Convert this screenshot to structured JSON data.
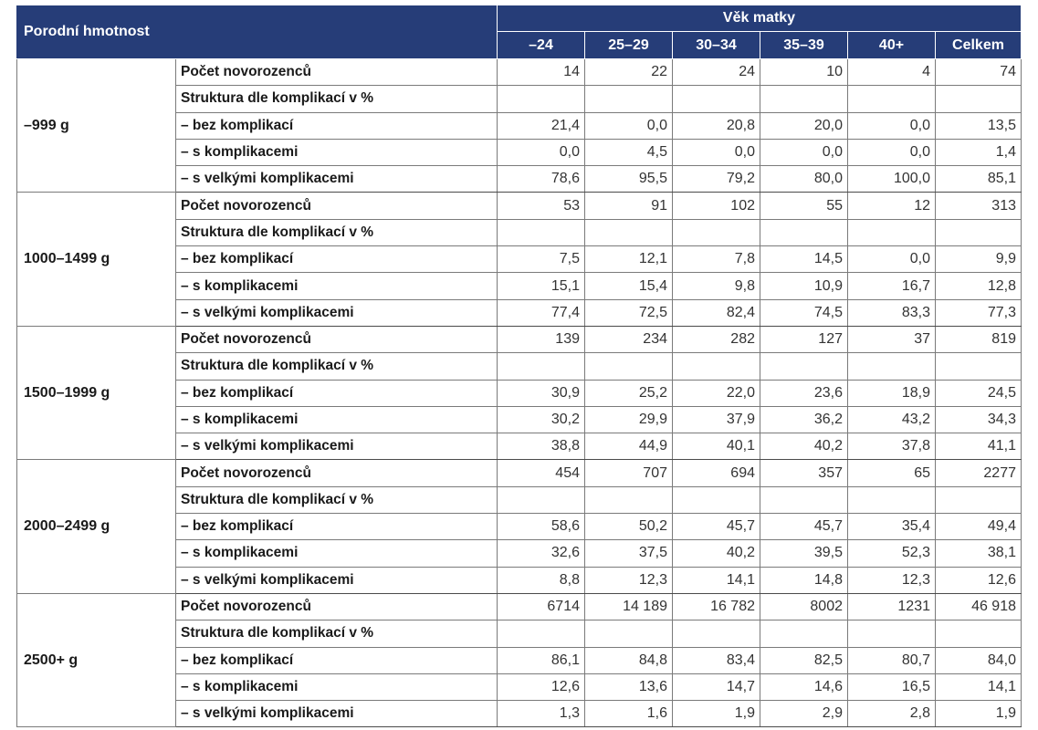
{
  "header": {
    "row_header": "Porodní hmotnost",
    "group_header": "Věk matky",
    "age_groups": [
      "–24",
      "25–29",
      "30–34",
      "35–39",
      "40+",
      "Celkem"
    ]
  },
  "row_labels": [
    "Počet novorozenců",
    "Struktura dle komplikací v %",
    "– bez komplikací",
    "– s komplikacemi",
    "– s velkými komplikacemi"
  ],
  "blocks": [
    {
      "weight": "–999 g",
      "rows": [
        [
          "14",
          "22",
          "24",
          "10",
          "4",
          "74"
        ],
        [
          "",
          "",
          "",
          "",
          "",
          ""
        ],
        [
          "21,4",
          "0,0",
          "20,8",
          "20,0",
          "0,0",
          "13,5"
        ],
        [
          "0,0",
          "4,5",
          "0,0",
          "0,0",
          "0,0",
          "1,4"
        ],
        [
          "78,6",
          "95,5",
          "79,2",
          "80,0",
          "100,0",
          "85,1"
        ]
      ]
    },
    {
      "weight": "1000–1499 g",
      "rows": [
        [
          "53",
          "91",
          "102",
          "55",
          "12",
          "313"
        ],
        [
          "",
          "",
          "",
          "",
          "",
          ""
        ],
        [
          "7,5",
          "12,1",
          "7,8",
          "14,5",
          "0,0",
          "9,9"
        ],
        [
          "15,1",
          "15,4",
          "9,8",
          "10,9",
          "16,7",
          "12,8"
        ],
        [
          "77,4",
          "72,5",
          "82,4",
          "74,5",
          "83,3",
          "77,3"
        ]
      ]
    },
    {
      "weight": "1500–1999 g",
      "rows": [
        [
          "139",
          "234",
          "282",
          "127",
          "37",
          "819"
        ],
        [
          "",
          "",
          "",
          "",
          "",
          ""
        ],
        [
          "30,9",
          "25,2",
          "22,0",
          "23,6",
          "18,9",
          "24,5"
        ],
        [
          "30,2",
          "29,9",
          "37,9",
          "36,2",
          "43,2",
          "34,3"
        ],
        [
          "38,8",
          "44,9",
          "40,1",
          "40,2",
          "37,8",
          "41,1"
        ]
      ]
    },
    {
      "weight": "2000–2499 g",
      "rows": [
        [
          "454",
          "707",
          "694",
          "357",
          "65",
          "2277"
        ],
        [
          "",
          "",
          "",
          "",
          "",
          ""
        ],
        [
          "58,6",
          "50,2",
          "45,7",
          "45,7",
          "35,4",
          "49,4"
        ],
        [
          "32,6",
          "37,5",
          "40,2",
          "39,5",
          "52,3",
          "38,1"
        ],
        [
          "8,8",
          "12,3",
          "14,1",
          "14,8",
          "12,3",
          "12,6"
        ]
      ]
    },
    {
      "weight": "2500+ g",
      "rows": [
        [
          "6714",
          "14 189",
          "16 782",
          "8002",
          "1231",
          "46 918"
        ],
        [
          "",
          "",
          "",
          "",
          "",
          ""
        ],
        [
          "86,1",
          "84,8",
          "83,4",
          "82,5",
          "80,7",
          "84,0"
        ],
        [
          "12,6",
          "13,6",
          "14,7",
          "14,6",
          "16,5",
          "14,1"
        ],
        [
          "1,3",
          "1,6",
          "1,9",
          "2,9",
          "2,8",
          "1,9"
        ]
      ]
    }
  ]
}
